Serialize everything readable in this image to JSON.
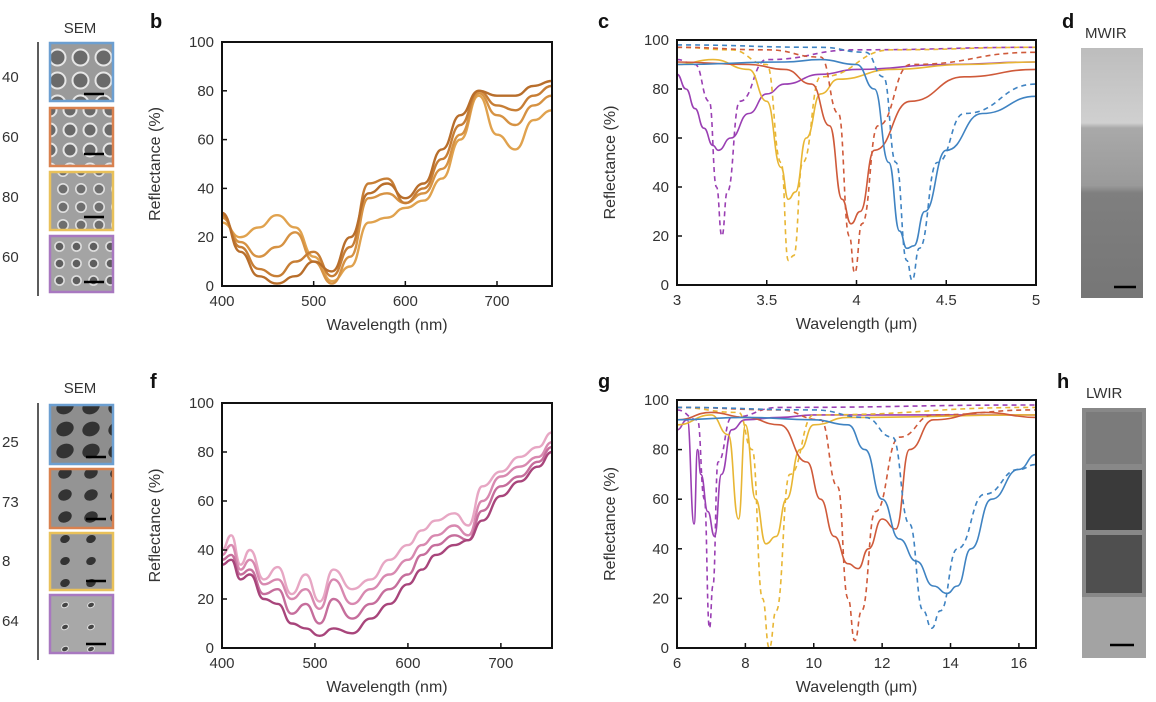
{
  "figure": {
    "top": {
      "sem_title": "SEM",
      "row_labels": [
        "40",
        "60",
        "80",
        "60"
      ],
      "tile_colors": [
        "#6c9fd1",
        "#d9814f",
        "#e9c15a",
        "#a878c0"
      ],
      "ir_letter": "d",
      "ir_title": "MWIR"
    },
    "bottom": {
      "sem_title": "SEM",
      "row_labels": [
        "25",
        "73",
        "8",
        "64"
      ],
      "tile_colors": [
        "#6c9fd1",
        "#d9814f",
        "#e9c15a",
        "#a878c0"
      ],
      "ir_letter": "h",
      "ir_title": "LWIR"
    }
  },
  "chart_data": [
    {
      "panel": "b",
      "type": "line",
      "xlabel": "Wavelength (nm)",
      "ylabel": "Reflectance (%)",
      "xlim": [
        400,
        760
      ],
      "ylim": [
        0,
        100
      ],
      "xticks": [
        "400",
        "500",
        "600",
        "700"
      ],
      "yticks": [
        "0",
        "20",
        "40",
        "60",
        "80",
        "100"
      ],
      "series": [
        {
          "color": "#e0a24e",
          "x": [
            400,
            420,
            440,
            460,
            480,
            500,
            520,
            540,
            560,
            580,
            600,
            620,
            640,
            660,
            680,
            700,
            720,
            740,
            760
          ],
          "y": [
            26,
            20,
            24,
            29,
            24,
            12,
            2,
            8,
            26,
            28,
            32,
            35,
            44,
            60,
            78,
            62,
            56,
            68,
            72
          ]
        },
        {
          "color": "#d69243",
          "x": [
            400,
            420,
            440,
            460,
            480,
            500,
            520,
            540,
            560,
            580,
            600,
            620,
            640,
            660,
            680,
            700,
            720,
            740,
            760
          ],
          "y": [
            28,
            18,
            12,
            16,
            22,
            10,
            1,
            12,
            36,
            38,
            34,
            38,
            48,
            62,
            79,
            70,
            66,
            74,
            78
          ]
        },
        {
          "color": "#c77e35",
          "x": [
            400,
            420,
            440,
            460,
            480,
            500,
            520,
            540,
            560,
            580,
            600,
            620,
            640,
            660,
            680,
            700,
            720,
            740,
            760
          ],
          "y": [
            29,
            16,
            7,
            4,
            10,
            14,
            4,
            16,
            42,
            44,
            34,
            40,
            52,
            66,
            80,
            74,
            72,
            78,
            82
          ]
        },
        {
          "color": "#b86e2b",
          "x": [
            400,
            420,
            440,
            460,
            480,
            500,
            520,
            540,
            560,
            580,
            600,
            620,
            640,
            660,
            680,
            700,
            720,
            740,
            760
          ],
          "y": [
            30,
            14,
            4,
            1,
            4,
            10,
            6,
            20,
            38,
            42,
            36,
            42,
            56,
            70,
            80,
            78,
            78,
            82,
            84
          ]
        }
      ]
    },
    {
      "panel": "c",
      "type": "line",
      "xlabel": "Wavelength (μm)",
      "ylabel": "Reflectance (%)",
      "xlim": [
        3,
        5
      ],
      "ylim": [
        0,
        100
      ],
      "xticks": [
        "3",
        "3.5",
        "4",
        "4.5",
        "5"
      ],
      "yticks": [
        "0",
        "20",
        "40",
        "60",
        "80",
        "100"
      ],
      "series": [
        {
          "color": "#9a3fb3",
          "style": "solid",
          "x": [
            3,
            3.05,
            3.1,
            3.15,
            3.2,
            3.23,
            3.3,
            3.4,
            3.5,
            3.6,
            3.8,
            4,
            4.5,
            5
          ],
          "y": [
            86,
            80,
            72,
            64,
            57,
            55,
            60,
            70,
            78,
            82,
            86,
            88,
            90,
            91
          ]
        },
        {
          "color": "#9a3fb3",
          "style": "dashed",
          "x": [
            3,
            3.1,
            3.18,
            3.22,
            3.25,
            3.28,
            3.35,
            3.5,
            4,
            5
          ],
          "y": [
            92,
            90,
            75,
            40,
            20,
            38,
            75,
            92,
            96,
            97
          ]
        },
        {
          "color": "#e8b634",
          "style": "solid",
          "x": [
            3,
            3.2,
            3.4,
            3.5,
            3.58,
            3.62,
            3.66,
            3.72,
            3.8,
            3.9,
            4.2,
            4.6,
            5
          ],
          "y": [
            90,
            92,
            88,
            75,
            48,
            35,
            38,
            60,
            78,
            84,
            88,
            90,
            91
          ]
        },
        {
          "color": "#e8b634",
          "style": "dashed",
          "x": [
            3,
            3.3,
            3.5,
            3.58,
            3.62,
            3.65,
            3.7,
            3.8,
            4.2,
            5
          ],
          "y": [
            97,
            96,
            90,
            50,
            10,
            12,
            50,
            85,
            96,
            97
          ]
        },
        {
          "color": "#cf5a3a",
          "style": "solid",
          "x": [
            3,
            3.4,
            3.6,
            3.75,
            3.85,
            3.92,
            3.97,
            4.02,
            4.1,
            4.3,
            4.6,
            5
          ],
          "y": [
            91,
            90,
            88,
            82,
            65,
            35,
            25,
            30,
            55,
            75,
            85,
            88
          ]
        },
        {
          "color": "#cf5a3a",
          "style": "dashed",
          "x": [
            3,
            3.5,
            3.8,
            3.9,
            3.96,
            3.99,
            4.03,
            4.12,
            4.3,
            5
          ],
          "y": [
            97,
            96,
            93,
            70,
            20,
            5,
            25,
            65,
            90,
            95
          ]
        },
        {
          "color": "#3f83c2",
          "style": "solid",
          "x": [
            3,
            3.6,
            3.8,
            4,
            4.1,
            4.18,
            4.24,
            4.28,
            4.32,
            4.38,
            4.5,
            4.7,
            5
          ],
          "y": [
            90,
            91,
            92,
            90,
            80,
            50,
            22,
            15,
            16,
            30,
            55,
            70,
            77
          ]
        },
        {
          "color": "#3f83c2",
          "style": "dashed",
          "x": [
            3,
            3.8,
            4.05,
            4.15,
            4.22,
            4.28,
            4.31,
            4.35,
            4.45,
            4.6,
            5
          ],
          "y": [
            98,
            97,
            95,
            85,
            50,
            10,
            2,
            15,
            50,
            70,
            82
          ]
        }
      ]
    },
    {
      "panel": "f",
      "type": "line",
      "xlabel": "Wavelength (nm)",
      "ylabel": "Reflectance (%)",
      "xlim": [
        400,
        755
      ],
      "ylim": [
        0,
        100
      ],
      "xticks": [
        "400",
        "500",
        "600",
        "700"
      ],
      "yticks": [
        "0",
        "20",
        "40",
        "60",
        "80",
        "100"
      ],
      "series": [
        {
          "color": "#e7a7c4",
          "x": [
            400,
            410,
            420,
            430,
            445,
            460,
            475,
            490,
            505,
            520,
            540,
            560,
            580,
            600,
            615,
            630,
            650,
            665,
            680,
            700,
            720,
            740,
            755
          ],
          "y": [
            40,
            46,
            34,
            40,
            28,
            33,
            22,
            30,
            19,
            32,
            24,
            28,
            36,
            42,
            48,
            52,
            55,
            50,
            66,
            72,
            78,
            82,
            88
          ]
        },
        {
          "color": "#d889b0",
          "x": [
            400,
            410,
            420,
            430,
            445,
            460,
            475,
            490,
            505,
            520,
            540,
            560,
            580,
            600,
            615,
            630,
            650,
            665,
            680,
            700,
            720,
            740,
            755
          ],
          "y": [
            38,
            42,
            32,
            36,
            26,
            28,
            20,
            24,
            16,
            28,
            18,
            24,
            30,
            36,
            42,
            46,
            50,
            46,
            60,
            70,
            74,
            78,
            84
          ]
        },
        {
          "color": "#c66e9c",
          "x": [
            400,
            410,
            420,
            430,
            445,
            460,
            475,
            490,
            505,
            520,
            540,
            560,
            580,
            600,
            615,
            630,
            650,
            665,
            680,
            700,
            720,
            740,
            755
          ],
          "y": [
            36,
            38,
            30,
            32,
            22,
            24,
            14,
            18,
            10,
            20,
            12,
            18,
            24,
            30,
            38,
            42,
            46,
            44,
            56,
            66,
            70,
            76,
            82
          ]
        },
        {
          "color": "#a8457b",
          "x": [
            400,
            410,
            420,
            430,
            445,
            460,
            475,
            490,
            505,
            520,
            540,
            560,
            580,
            600,
            615,
            630,
            650,
            665,
            680,
            700,
            720,
            740,
            755
          ],
          "y": [
            34,
            36,
            28,
            30,
            20,
            18,
            10,
            8,
            5,
            8,
            6,
            12,
            18,
            26,
            32,
            38,
            42,
            44,
            52,
            62,
            68,
            74,
            80
          ]
        }
      ]
    },
    {
      "panel": "g",
      "type": "line",
      "xlabel": "Wavelength (μm)",
      "ylabel": "Reflectance (%)",
      "xlim": [
        6,
        16.5
      ],
      "ylim": [
        0,
        100
      ],
      "xticks": [
        "6",
        "8",
        "10",
        "12",
        "14",
        "16"
      ],
      "yticks": [
        "0",
        "20",
        "40",
        "60",
        "80",
        "100"
      ],
      "series": [
        {
          "color": "#9a3fb3",
          "style": "solid",
          "x": [
            6,
            6.3,
            6.5,
            6.6,
            6.7,
            6.9,
            7.1,
            7.3,
            7.6,
            8,
            9,
            10,
            12,
            16.5
          ],
          "y": [
            88,
            92,
            50,
            80,
            70,
            55,
            45,
            70,
            88,
            92,
            93,
            94,
            94,
            94
          ]
        },
        {
          "color": "#9a3fb3",
          "style": "dashed",
          "x": [
            6,
            6.6,
            6.8,
            6.95,
            7.05,
            7.2,
            7.6,
            9,
            16.5
          ],
          "y": [
            96,
            92,
            60,
            8,
            25,
            75,
            93,
            97,
            98
          ]
        },
        {
          "color": "#e8b634",
          "style": "solid",
          "x": [
            6,
            7,
            7.5,
            7.8,
            8,
            8.3,
            8.6,
            8.9,
            9.2,
            9.6,
            10,
            11,
            16.5
          ],
          "y": [
            90,
            94,
            86,
            52,
            90,
            60,
            42,
            45,
            60,
            80,
            90,
            93,
            94
          ]
        },
        {
          "color": "#e8b634",
          "style": "dashed",
          "x": [
            6,
            7.8,
            8.2,
            8.5,
            8.7,
            8.9,
            9.3,
            10,
            16.5
          ],
          "y": [
            97,
            95,
            80,
            20,
            0,
            15,
            70,
            94,
            97
          ]
        },
        {
          "color": "#cf5a3a",
          "style": "solid",
          "x": [
            6,
            7,
            8,
            9,
            9.8,
            10.2,
            10.6,
            11,
            11.3,
            11.6,
            12,
            12.4,
            12.8,
            13.5,
            15,
            16.5
          ],
          "y": [
            92,
            95,
            93,
            90,
            75,
            60,
            45,
            34,
            32,
            40,
            52,
            48,
            80,
            92,
            95,
            93
          ]
        },
        {
          "color": "#cf5a3a",
          "style": "dashed",
          "x": [
            6,
            9,
            10.2,
            10.7,
            11,
            11.2,
            11.4,
            11.8,
            12.5,
            13.5,
            16.5
          ],
          "y": [
            97,
            96,
            92,
            65,
            20,
            3,
            15,
            55,
            85,
            94,
            96
          ]
        },
        {
          "color": "#3f83c2",
          "style": "solid",
          "x": [
            6,
            8,
            10,
            11,
            11.5,
            12,
            12.5,
            13,
            13.5,
            13.9,
            14.2,
            14.6,
            15.2,
            16,
            16.5
          ],
          "y": [
            92,
            93,
            92,
            90,
            80,
            60,
            44,
            35,
            25,
            22,
            25,
            40,
            60,
            72,
            78
          ]
        },
        {
          "color": "#3f83c2",
          "style": "dashed",
          "x": [
            6,
            10,
            11.5,
            12.3,
            12.8,
            13.2,
            13.45,
            13.7,
            14.2,
            15,
            16,
            16.5
          ],
          "y": [
            97,
            96,
            93,
            85,
            50,
            15,
            8,
            15,
            40,
            62,
            72,
            74
          ]
        }
      ]
    }
  ]
}
